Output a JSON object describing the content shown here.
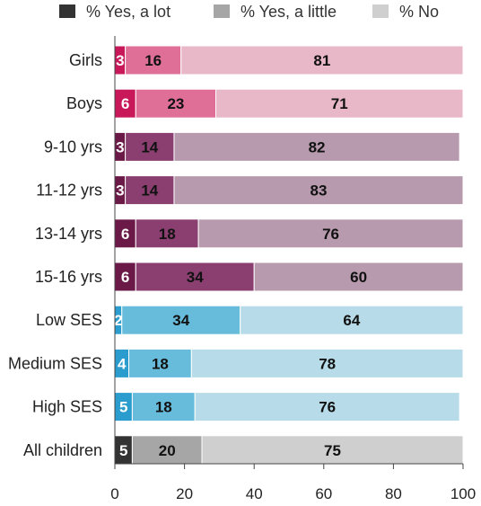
{
  "chart_data": {
    "type": "bar",
    "orientation": "horizontal",
    "stacked": true,
    "series_names": [
      "% Yes, a lot",
      "% Yes, a little",
      "% No"
    ],
    "legend_colors": [
      "#333333",
      "#a6a6a6",
      "#cfcfcf"
    ],
    "legend_position": "top",
    "categories": [
      "Girls",
      "Boys",
      "9-10 yrs",
      "11-12 yrs",
      "13-14 yrs",
      "15-16 yrs",
      "Low  SES",
      "Medium SES",
      "High SES",
      "All children"
    ],
    "values": [
      [
        3,
        16,
        81
      ],
      [
        6,
        23,
        71
      ],
      [
        3,
        14,
        82
      ],
      [
        3,
        14,
        83
      ],
      [
        6,
        18,
        76
      ],
      [
        6,
        34,
        60
      ],
      [
        2,
        34,
        64
      ],
      [
        4,
        18,
        78
      ],
      [
        5,
        18,
        76
      ],
      [
        5,
        20,
        75
      ]
    ],
    "row_colors": [
      [
        "#c8185a",
        "#df6f96",
        "#e8b7c8"
      ],
      [
        "#c8185a",
        "#df6f96",
        "#e8b7c8"
      ],
      [
        "#6b1a48",
        "#8b3f70",
        "#b79aad"
      ],
      [
        "#6b1a48",
        "#8b3f70",
        "#b79aad"
      ],
      [
        "#6b1a48",
        "#8b3f70",
        "#b79aad"
      ],
      [
        "#6b1a48",
        "#8b3f70",
        "#b79aad"
      ],
      [
        "#2a9ccd",
        "#67bcdc",
        "#b7dbe8"
      ],
      [
        "#2a9ccd",
        "#67bcdc",
        "#b7dbe8"
      ],
      [
        "#2a9ccd",
        "#67bcdc",
        "#b7dbe8"
      ],
      [
        "#333333",
        "#a6a6a6",
        "#cfcfcf"
      ]
    ],
    "value_label_colors": [
      [
        "light",
        "dark",
        "dark"
      ],
      [
        "light",
        "dark",
        "dark"
      ],
      [
        "light",
        "dark",
        "dark"
      ],
      [
        "light",
        "dark",
        "dark"
      ],
      [
        "light",
        "dark",
        "dark"
      ],
      [
        "light",
        "dark",
        "dark"
      ],
      [
        "light",
        "dark",
        "dark"
      ],
      [
        "light",
        "dark",
        "dark"
      ],
      [
        "light",
        "dark",
        "dark"
      ],
      [
        "light",
        "dark",
        "dark"
      ]
    ],
    "xlim": [
      0,
      100
    ],
    "xticks": [
      0,
      20,
      40,
      60,
      80,
      100
    ],
    "grid": false,
    "title": "",
    "xlabel": "",
    "ylabel": ""
  }
}
